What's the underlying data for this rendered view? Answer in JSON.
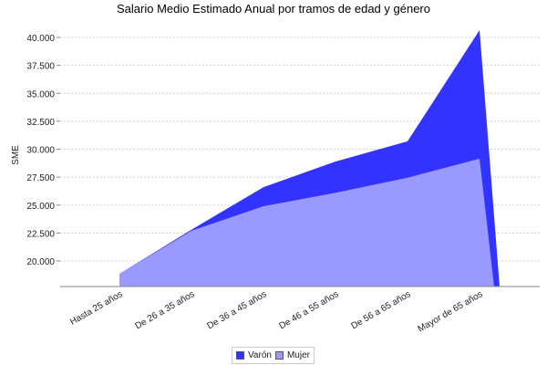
{
  "chart_data": {
    "type": "area",
    "title": "Salario Medio Estimado Anual por tramos de edad y género",
    "xlabel": "",
    "ylabel": "SME",
    "categories": [
      "Hasta 25  años",
      "De 26  a 35  años",
      "De 36  a 45  años",
      "De 46  a 55  años",
      "De 56  a 65  años",
      "Mayor de 65  años"
    ],
    "series": [
      {
        "name": "Varón",
        "color": "#3333ff",
        "values": [
          18850,
          22800,
          26600,
          28900,
          30700,
          40650
        ]
      },
      {
        "name": "Mujer",
        "color": "#9999ff",
        "values": [
          18850,
          22700,
          24900,
          26100,
          27450,
          29150
        ]
      }
    ],
    "yticks": [
      20000,
      22500,
      25000,
      27500,
      30000,
      32500,
      35000,
      37500,
      40000
    ],
    "ytick_labels": [
      "20.000",
      "22.500",
      "25.000",
      "27.500",
      "30.000",
      "32.500",
      "35.000",
      "37.500",
      "40.000"
    ],
    "ylim": [
      17700,
      41400
    ],
    "grid": true,
    "legend_position": "bottom"
  },
  "legend": {
    "items": [
      {
        "label": "Varón",
        "color": "#3333ff"
      },
      {
        "label": "Mujer",
        "color": "#9999ff"
      }
    ]
  }
}
